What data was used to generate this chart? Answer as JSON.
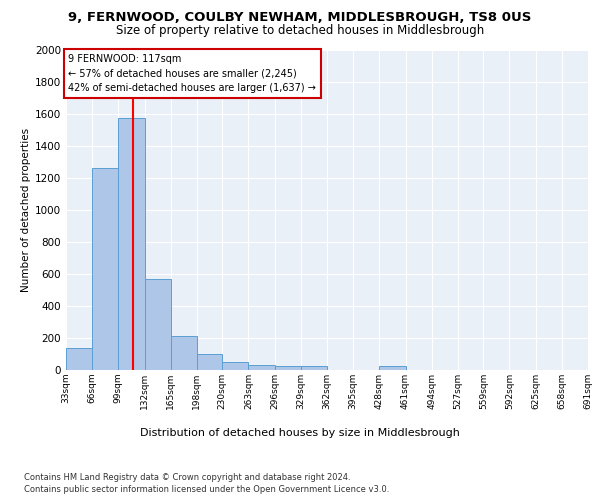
{
  "title1": "9, FERNWOOD, COULBY NEWHAM, MIDDLESBROUGH, TS8 0US",
  "title2": "Size of property relative to detached houses in Middlesbrough",
  "xlabel": "Distribution of detached houses by size in Middlesbrough",
  "ylabel": "Number of detached properties",
  "footnote1": "Contains HM Land Registry data © Crown copyright and database right 2024.",
  "footnote2": "Contains public sector information licensed under the Open Government Licence v3.0.",
  "annotation_title": "9 FERNWOOD: 117sqm",
  "annotation_line1": "← 57% of detached houses are smaller (2,245)",
  "annotation_line2": "42% of semi-detached houses are larger (1,637) →",
  "bar_edges": [
    33,
    66,
    99,
    132,
    165,
    198,
    230,
    263,
    296,
    329,
    362,
    395,
    428,
    461,
    494,
    527,
    559,
    592,
    625,
    658,
    691
  ],
  "bar_heights": [
    140,
    1265,
    1575,
    570,
    215,
    100,
    50,
    30,
    25,
    25,
    0,
    0,
    25,
    0,
    0,
    0,
    0,
    0,
    0,
    0
  ],
  "bar_color": "#aec6e8",
  "bar_edge_color": "#5a9fd4",
  "red_line_x": 117,
  "ylim": [
    0,
    2000
  ],
  "yticks": [
    0,
    200,
    400,
    600,
    800,
    1000,
    1200,
    1400,
    1600,
    1800,
    2000
  ],
  "bg_color": "#eaf0f8",
  "plot_bg_color": "#eaf0f8",
  "annotation_box_color": "#ffffff",
  "annotation_box_edge": "#cc0000",
  "title_fontsize": 9.5,
  "subtitle_fontsize": 8.5
}
